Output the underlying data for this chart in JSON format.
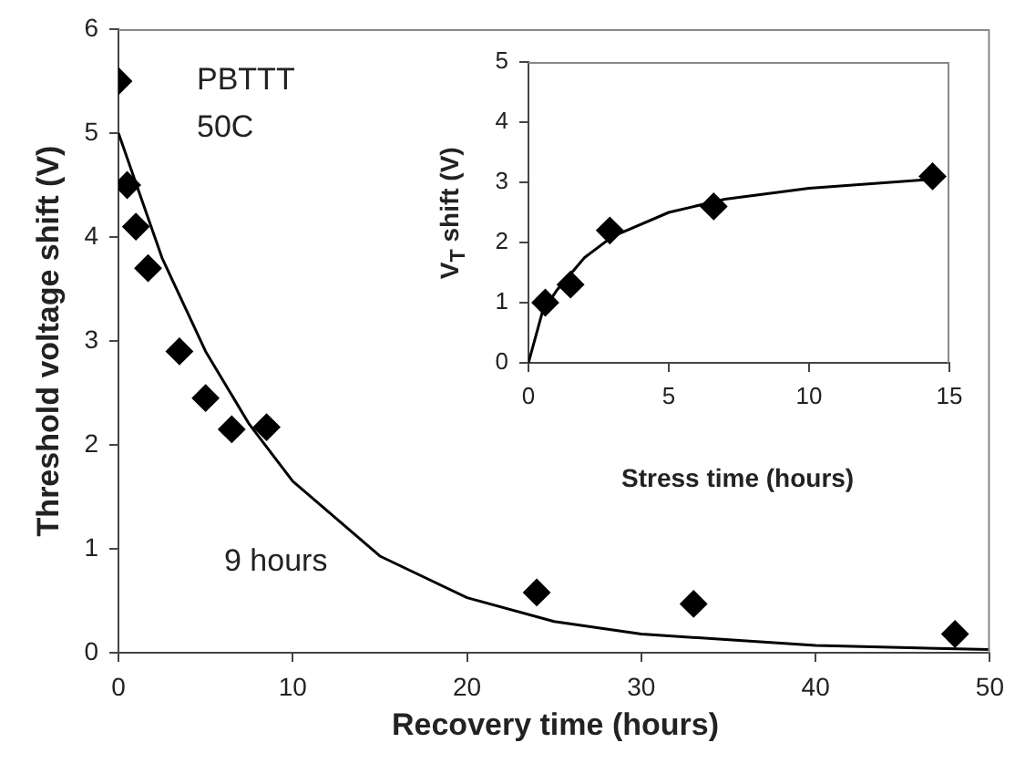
{
  "chart_data": [
    {
      "type": "scatter",
      "xlabel": "Recovery time (hours)",
      "ylabel": "Threshold voltage shift (V)",
      "xlim": [
        0,
        50
      ],
      "ylim": [
        0,
        6
      ],
      "xticks": [
        0,
        10,
        20,
        30,
        40,
        50
      ],
      "yticks": [
        0,
        1,
        2,
        3,
        4,
        5,
        6
      ],
      "annotations": [
        "PBTTT",
        "50C",
        "9 hours"
      ],
      "series": [
        {
          "type": "scatter",
          "marker": "diamond",
          "color": "#000000",
          "x": [
            0,
            0.5,
            1,
            1.7,
            3.5,
            5,
            6.5,
            8.5,
            24,
            33,
            48
          ],
          "values": [
            5.5,
            4.5,
            4.1,
            3.7,
            2.9,
            2.45,
            2.15,
            2.17,
            0.58,
            0.47,
            0.18
          ]
        },
        {
          "type": "line",
          "color": "#000000",
          "x": [
            0,
            2.5,
            5,
            7.5,
            10,
            15,
            20,
            25,
            30,
            40,
            50
          ],
          "values": [
            5,
            3.8,
            2.9,
            2.2,
            1.65,
            0.93,
            0.53,
            0.3,
            0.18,
            0.07,
            0.03
          ]
        }
      ]
    },
    {
      "type": "scatter",
      "xlabel": "Stress time (hours)",
      "ylabel": "V$_{T}$ shift (V)",
      "xlim": [
        0,
        15
      ],
      "ylim": [
        0,
        5
      ],
      "xticks": [
        0,
        5,
        10,
        15
      ],
      "yticks": [
        0,
        1,
        2,
        3,
        4,
        5
      ],
      "series": [
        {
          "type": "scatter",
          "marker": "diamond",
          "color": "#000000",
          "x": [
            0.6,
            1.5,
            2.9,
            6.6,
            14.4
          ],
          "values": [
            1.0,
            1.3,
            2.2,
            2.6,
            3.1
          ]
        },
        {
          "type": "line",
          "color": "#000000",
          "x": [
            0,
            0.5,
            1,
            2,
            3,
            5,
            7,
            10,
            14.4
          ],
          "values": [
            0,
            0.85,
            1.2,
            1.75,
            2.1,
            2.5,
            2.72,
            2.9,
            3.05
          ]
        }
      ]
    }
  ]
}
